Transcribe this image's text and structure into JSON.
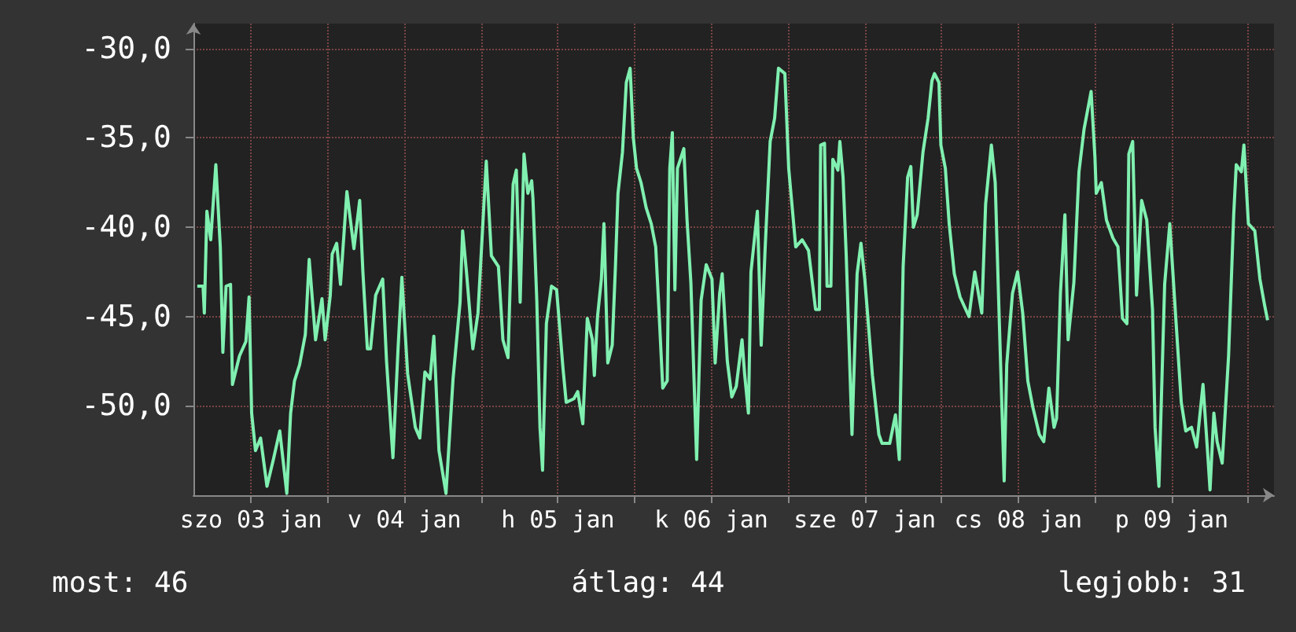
{
  "chart_data": {
    "type": "line",
    "xlim": [
      "--01-03T03:00",
      "--01-10T04:00"
    ],
    "xticks": [
      {
        "value": "--01-03T12:00",
        "label": "szo 03 jan"
      },
      {
        "value": "--01-04",
        "label": null
      },
      {
        "value": "--01-04T12:00",
        "label": "v 04 jan"
      },
      {
        "value": "--01-05",
        "label": null
      },
      {
        "value": "--01-05T12:00",
        "label": "h 05 jan"
      },
      {
        "value": "--01-06",
        "label": null
      },
      {
        "value": "--01-06T12:00",
        "label": "k 06 jan"
      },
      {
        "value": "--01-07",
        "label": null
      },
      {
        "value": "--01-07T12:00",
        "label": "sze 07 jan"
      },
      {
        "value": "--01-08",
        "label": null
      },
      {
        "value": "--01-08T12:00",
        "label": "cs 08 jan"
      },
      {
        "value": "--01-09",
        "label": null
      },
      {
        "value": "--01-09T12:00",
        "label": "p 09 jan"
      },
      {
        "value": "--01-10",
        "label": null
      }
    ],
    "ylim": [
      -55,
      -28.6
    ],
    "yticks": [
      {
        "value": -50,
        "label": "-50,0"
      },
      {
        "value": -45,
        "label": "-45,0"
      },
      {
        "value": -40,
        "label": "-40,0"
      },
      {
        "value": -35,
        "label": "-35,0"
      },
      {
        "value": -30,
        "label": "-30,0"
      }
    ],
    "grid": true,
    "marker": "none",
    "line_style": "solid",
    "annotations": [
      "most: 46",
      "átlag: 44",
      "legjobb: 31"
    ],
    "series": [
      {
        "color": "#80f0b0",
        "x": [
          "--01-03T03:36",
          "--01-03T04:30",
          "--01-03T04:42",
          "--01-03T05:06",
          "--01-03T05:42",
          "--01-03T06:30",
          "--01-03T07:12",
          "--01-03T07:36",
          "--01-03T08:06",
          "--01-03T08:48",
          "--01-03T09:06",
          "--01-03T10:12",
          "--01-03T11:12",
          "--01-03T11:42",
          "--01-03T12:06",
          "--01-03T12:42",
          "--01-03T13:30",
          "--01-03T14:30",
          "--01-03T15:30",
          "--01-03T16:30",
          "--01-03T17:36",
          "--01-03T18:12",
          "--01-03T18:48",
          "--01-03T19:36",
          "--01-03T20:30",
          "--01-03T21:06",
          "--01-03T22:06",
          "--01-03T23:06",
          "--01-03T23:36",
          "--01-04T00:24",
          "--01-04T00:42",
          "--01-04T01:24",
          "--01-04T02:00",
          "--01-04T03:00",
          "--01-04T04:06",
          "--01-04T05:00",
          "--01-04T05:30",
          "--01-04T06:12",
          "--01-04T06:42",
          "--01-04T07:30",
          "--01-04T08:36",
          "--01-04T09:12",
          "--01-04T10:12",
          "--01-04T11:00",
          "--01-04T11:36",
          "--01-04T12:30",
          "--01-04T13:42",
          "--01-04T14:24",
          "--01-04T15:12",
          "--01-04T16:00",
          "--01-04T16:36",
          "--01-04T17:24",
          "--01-04T18:30",
          "--01-04T19:36",
          "--01-04T20:42",
          "--01-04T21:06",
          "--01-04T21:42",
          "--01-04T22:42",
          "--01-04T23:30",
          "--01-05T00:48",
          "--01-05T01:36",
          "--01-05T02:42",
          "--01-05T03:24",
          "--01-05T04:12",
          "--01-05T05:00",
          "--01-05T05:30",
          "--01-05T06:06",
          "--01-05T06:42",
          "--01-05T07:18",
          "--01-05T07:54",
          "--01-05T08:06",
          "--01-05T08:42",
          "--01-05T09:12",
          "--01-05T09:36",
          "--01-05T10:12",
          "--01-05T11:00",
          "--01-05T11:48",
          "--01-05T12:48",
          "--01-05T13:18",
          "--01-05T14:30",
          "--01-05T15:06",
          "--01-05T15:54",
          "--01-05T16:36",
          "--01-05T17:24",
          "--01-05T17:42",
          "--01-05T18:12",
          "--01-05T18:48",
          "--01-05T19:12",
          "--01-05T19:48",
          "--01-05T20:30",
          "--01-05T21:00",
          "--01-05T21:24",
          "--01-05T22:06",
          "--01-05T22:42",
          "--01-05T23:18",
          "--01-05T23:48",
          "--01-06T00:18",
          "--01-06T01:00",
          "--01-06T01:48",
          "--01-06T02:36",
          "--01-06T03:18",
          "--01-06T03:48",
          "--01-06T04:24",
          "--01-06T05:06",
          "--01-06T05:30",
          "--01-06T05:54",
          "--01-06T06:18",
          "--01-06T06:42",
          "--01-06T07:42",
          "--01-06T08:12",
          "--01-06T08:48",
          "--01-06T09:42",
          "--01-06T10:24",
          "--01-06T11:12",
          "--01-06T12:06",
          "--01-06T12:36",
          "--01-06T13:18",
          "--01-06T13:42",
          "--01-06T14:30",
          "--01-06T15:12",
          "--01-06T15:54",
          "--01-06T16:48",
          "--01-06T17:12",
          "--01-06T17:48",
          "--01-06T18:12",
          "--01-06T19:12",
          "--01-06T19:48",
          "--01-06T20:24",
          "--01-06T21:12",
          "--01-06T21:54",
          "--01-06T22:30",
          "--01-06T23:30",
          "--01-07T00:06",
          "--01-07T01:12",
          "--01-07T02:12",
          "--01-07T03:12",
          "--01-07T04:18",
          "--01-07T04:54",
          "--01-07T05:06",
          "--01-07T05:42",
          "--01-07T06:06",
          "--01-07T06:42",
          "--01-07T07:00",
          "--01-07T07:48",
          "--01-07T08:06",
          "--01-07T08:36",
          "--01-07T09:06",
          "--01-07T10:00",
          "--01-07T10:48",
          "--01-07T11:24",
          "--01-07T12:00",
          "--01-07T13:12",
          "--01-07T14:12",
          "--01-07T14:42",
          "--01-07T15:54",
          "--01-07T16:48",
          "--01-07T17:24",
          "--01-07T18:00",
          "--01-07T18:42",
          "--01-07T19:12",
          "--01-07T19:36",
          "--01-07T20:12",
          "--01-07T21:06",
          "--01-07T21:54",
          "--01-07T22:30",
          "--01-07T22:54",
          "--01-07T23:36",
          "--01-07T23:54",
          "--01-08T00:36",
          "--01-08T01:12",
          "--01-08T02:00",
          "--01-08T02:54",
          "--01-08T04:18",
          "--01-08T05:12",
          "--01-08T06:18",
          "--01-08T06:54",
          "--01-08T07:48",
          "--01-08T08:24",
          "--01-08T09:00",
          "--01-08T09:48",
          "--01-08T10:12",
          "--01-08T11:06",
          "--01-08T11:54",
          "--01-08T12:42",
          "--01-08T13:30",
          "--01-08T14:18",
          "--01-08T15:18",
          "--01-08T16:00",
          "--01-08T16:48",
          "--01-08T17:36",
          "--01-08T18:00",
          "--01-08T18:36",
          "--01-08T19:18",
          "--01-08T19:48",
          "--01-08T20:42",
          "--01-08T21:30",
          "--01-08T22:18",
          "--01-08T23:24",
          "--01-09T00:00",
          "--01-09T00:12",
          "--01-09T01:00",
          "--01-09T01:48",
          "--01-09T02:48",
          "--01-09T03:36",
          "--01-09T04:18",
          "--01-09T05:00",
          "--01-09T05:18",
          "--01-09T05:54",
          "--01-09T06:30",
          "--01-09T07:18",
          "--01-09T08:06",
          "--01-09T09:00",
          "--01-09T09:24",
          "--01-09T10:00",
          "--01-09T10:54",
          "--01-09T11:42",
          "--01-09T12:42",
          "--01-09T13:30",
          "--01-09T14:12",
          "--01-09T15:06",
          "--01-09T15:54",
          "--01-09T16:54",
          "--01-09T17:36",
          "--01-09T18:00",
          "--01-09T18:36",
          "--01-09T19:06",
          "--01-09T19:54",
          "--01-09T20:54",
          "--01-09T21:42",
          "--01-09T22:06",
          "--01-09T22:54",
          "--01-09T23:18",
          "--01-10T00:00",
          "--01-10T01:00",
          "--01-10T01:48",
          "--01-10T02:30",
          "--01-10T03:00"
        ],
        "values": [
          -43.3,
          -43.3,
          -44.8,
          -39.1,
          -40.7,
          -36.5,
          -41.1,
          -47.0,
          -43.3,
          -43.2,
          -48.8,
          -47.2,
          -46.4,
          -43.9,
          -50.4,
          -52.5,
          -51.8,
          -54.5,
          -53.0,
          -51.4,
          -54.9,
          -50.4,
          -48.6,
          -47.7,
          -46.0,
          -41.8,
          -46.3,
          -44.0,
          -46.3,
          -43.8,
          -41.5,
          -40.9,
          -43.2,
          -38.0,
          -41.2,
          -38.5,
          -42.5,
          -46.8,
          -46.8,
          -43.8,
          -42.9,
          -47.5,
          -52.9,
          -46.8,
          -42.8,
          -48.2,
          -51.2,
          -51.8,
          -48.1,
          -48.5,
          -46.1,
          -52.5,
          -54.9,
          -48.5,
          -44.2,
          -40.2,
          -42.5,
          -46.8,
          -44.8,
          -36.3,
          -41.6,
          -42.2,
          -46.3,
          -47.3,
          -37.6,
          -36.8,
          -44.2,
          -35.9,
          -38.1,
          -37.4,
          -38.4,
          -44.1,
          -51.2,
          -53.6,
          -45.4,
          -43.3,
          -43.5,
          -47.9,
          -49.8,
          -49.6,
          -49.2,
          -51.0,
          -45.1,
          -46.3,
          -48.3,
          -45.0,
          -42.9,
          -39.8,
          -47.6,
          -46.6,
          -42.2,
          -38.1,
          -35.8,
          -31.9,
          -31.1,
          -35.0,
          -36.7,
          -37.5,
          -38.9,
          -39.8,
          -41.1,
          -44.6,
          -49.0,
          -48.6,
          -36.7,
          -34.7,
          -43.5,
          -36.7,
          -35.6,
          -39.6,
          -43.1,
          -53.0,
          -44.1,
          -42.1,
          -42.9,
          -47.6,
          -43.7,
          -42.6,
          -47.5,
          -49.5,
          -48.9,
          -46.3,
          -48.2,
          -50.4,
          -42.5,
          -39.1,
          -46.6,
          -41.3,
          -35.2,
          -33.9,
          -31.1,
          -31.4,
          -36.7,
          -41.1,
          -40.7,
          -41.3,
          -44.6,
          -44.6,
          -35.4,
          -35.3,
          -43.3,
          -43.3,
          -36.2,
          -36.8,
          -35.2,
          -37.2,
          -41.6,
          -51.6,
          -42.6,
          -40.9,
          -42.9,
          -48.3,
          -51.6,
          -52.1,
          -52.1,
          -50.5,
          -53.0,
          -42.2,
          -37.2,
          -36.6,
          -40.0,
          -39.3,
          -35.8,
          -33.9,
          -31.8,
          -31.4,
          -31.9,
          -35.4,
          -36.7,
          -39.8,
          -42.6,
          -43.9,
          -45.0,
          -42.5,
          -44.8,
          -38.7,
          -35.4,
          -37.5,
          -44.8,
          -54.2,
          -47.7,
          -43.7,
          -42.5,
          -44.8,
          -48.6,
          -50.1,
          -51.6,
          -52.0,
          -49.0,
          -51.2,
          -50.7,
          -43.7,
          -39.3,
          -46.3,
          -43.1,
          -36.9,
          -34.5,
          -32.4,
          -36.1,
          -38.1,
          -37.5,
          -39.6,
          -40.6,
          -41.1,
          -45.1,
          -45.4,
          -35.9,
          -35.2,
          -43.8,
          -38.5,
          -39.6,
          -44.6,
          -51.2,
          -54.5,
          -43.2,
          -39.8,
          -45.4,
          -49.8,
          -51.4,
          -51.2,
          -52.3,
          -48.8,
          -52.5,
          -54.7,
          -50.4,
          -52.0,
          -53.2,
          -47.2,
          -39.3,
          -36.5,
          -36.9,
          -35.4,
          -39.8,
          -40.2,
          -42.9,
          -44.3,
          -45.2
        ]
      }
    ]
  }
}
